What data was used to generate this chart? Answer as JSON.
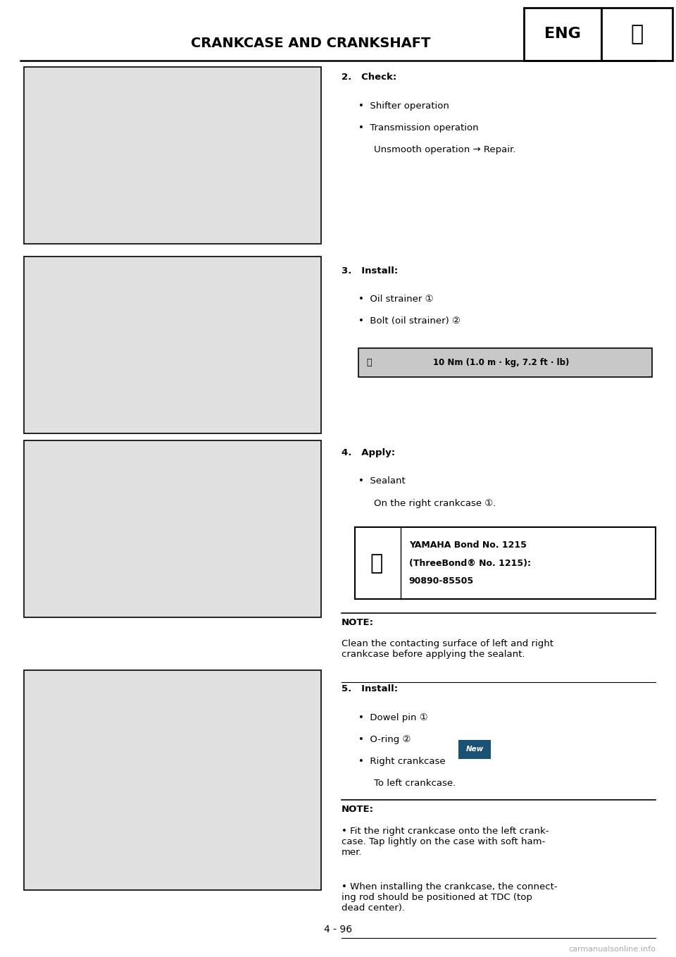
{
  "page_background": "#ffffff",
  "page_width": 9.6,
  "page_height": 13.58,
  "header": {
    "title": "CRANKCASE AND CRANKSHAFT",
    "eng_label": "ENG",
    "title_fontsize": 14,
    "eng_fontsize": 16
  },
  "section2": {
    "heading": "2.   Check:",
    "bullets": [
      "Shifter operation",
      "Transmission operation"
    ],
    "sub_note": "Unsmooth operation → Repair."
  },
  "section3": {
    "heading": "3.   Install:",
    "bullets": [
      "Oil strainer ①",
      "Bolt (oil strainer) ②"
    ],
    "torque_box": "10 Nm (1.0 m · kg, 7.2 ft · lb)"
  },
  "section4": {
    "heading": "4.   Apply:",
    "bullets": [
      "Sealant"
    ],
    "sub_note": "On the right crankcase ①.",
    "tool_box_line1": "YAMAHA Bond No. 1215",
    "tool_box_line2": "(ThreeBond® No. 1215):",
    "tool_box_line3": "90890-85505",
    "note_heading": "NOTE:",
    "note_text": "Clean the contacting surface of left and right\ncrankcase before applying the sealant."
  },
  "section5": {
    "heading": "5.   Install:",
    "bullets": [
      "Dowel pin ①",
      "O-ring ②",
      "Right crankcase"
    ],
    "sub_note": "To left crankcase.",
    "note_heading": "NOTE:",
    "note_bullet1": "Fit the right crankcase onto the left crank-\ncase. Tap lightly on the case with soft ham-\nmer.",
    "note_bullet2": "When installing the crankcase, the connect-\ning rod should be positioned at TDC (top\ndead center)."
  },
  "footer": {
    "page_number": "4 - 96",
    "watermark": "carmanualsonline.info"
  },
  "text_color": "#000000",
  "body_fontsize": 9.5,
  "bullet_fontsize": 9.5
}
